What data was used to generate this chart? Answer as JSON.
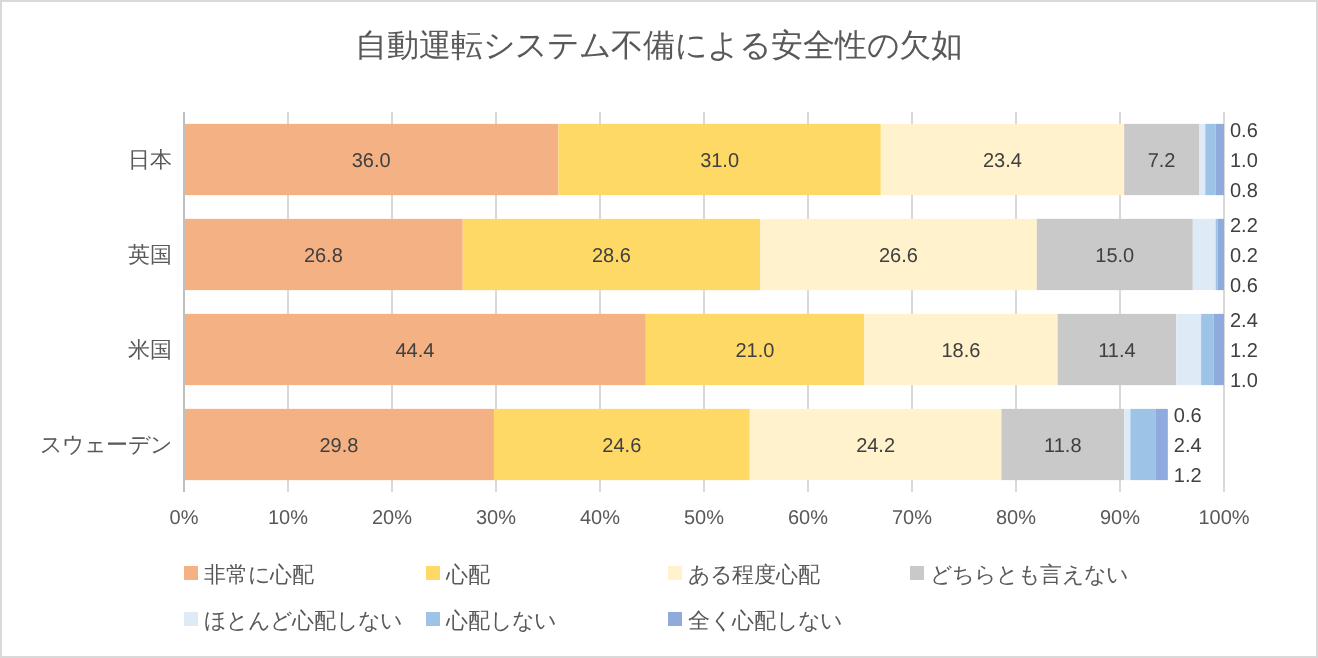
{
  "chart_data": {
    "type": "bar",
    "orientation": "horizontal",
    "stacked": true,
    "title": "自動運転システム不備による安全性の欠如",
    "categories": [
      "日本",
      "英国",
      "米国",
      "スウェーデン"
    ],
    "series": [
      {
        "name": "非常に心配",
        "color": "#f4b183",
        "values": [
          36.0,
          26.8,
          44.4,
          29.8
        ],
        "value_labels": [
          "36.0",
          "26.8",
          "44.4",
          "29.8"
        ]
      },
      {
        "name": "心配",
        "color": "#ffd966",
        "values": [
          31.0,
          28.6,
          21.0,
          24.6
        ],
        "value_labels": [
          "31.0",
          "28.6",
          "21.0",
          "24.6"
        ]
      },
      {
        "name": "ある程度心配",
        "color": "#fff2cc",
        "values": [
          23.4,
          26.6,
          18.6,
          24.2
        ],
        "value_labels": [
          "23.4",
          "26.6",
          "18.6",
          "24.2"
        ]
      },
      {
        "name": "どちらとも言えない",
        "color": "#c9c9c9",
        "values": [
          7.2,
          15.0,
          11.4,
          11.8
        ],
        "value_labels": [
          "7.2",
          "15.0",
          "11.4",
          "11.8"
        ]
      },
      {
        "name": "ほとんど心配しない",
        "color": "#deebf7",
        "values": [
          0.6,
          2.2,
          2.4,
          0.6
        ],
        "value_labels": [
          "0.6",
          "2.2",
          "2.4",
          "0.6"
        ]
      },
      {
        "name": "心配しない",
        "color": "#9dc3e6",
        "values": [
          1.0,
          0.2,
          1.2,
          2.4
        ],
        "value_labels": [
          "1.0",
          "0.2",
          "1.2",
          "2.4"
        ]
      },
      {
        "name": "全く心配しない",
        "color": "#8faadc",
        "values": [
          0.8,
          0.6,
          1.0,
          1.2
        ],
        "value_labels": [
          "0.8",
          "0.6",
          "1.0",
          "1.2"
        ]
      }
    ],
    "xlim": [
      0,
      100
    ],
    "xticks": [
      {
        "value": 0,
        "label": "0%"
      },
      {
        "value": 10,
        "label": "10%"
      },
      {
        "value": 20,
        "label": "20%"
      },
      {
        "value": 30,
        "label": "30%"
      },
      {
        "value": 40,
        "label": "40%"
      },
      {
        "value": 50,
        "label": "50%"
      },
      {
        "value": 60,
        "label": "60%"
      },
      {
        "value": 70,
        "label": "70%"
      },
      {
        "value": 80,
        "label": "80%"
      },
      {
        "value": 90,
        "label": "90%"
      },
      {
        "value": 100,
        "label": "100%"
      }
    ],
    "grid": "x",
    "legend": "bottom"
  }
}
